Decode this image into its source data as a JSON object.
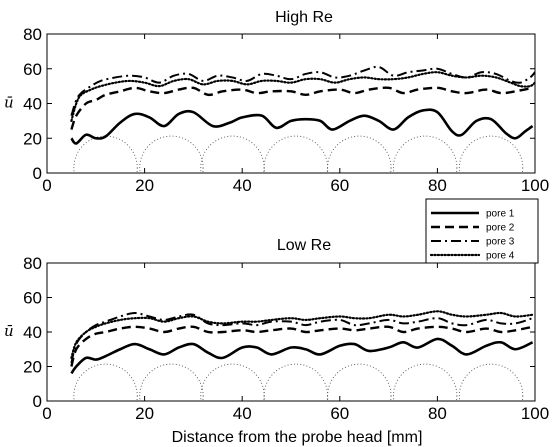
{
  "figure": {
    "xlabel": "Distance from the probe head [mm]"
  },
  "legend": {
    "entries": [
      {
        "label": "pore 1",
        "style": "solid"
      },
      {
        "label": "pore 2",
        "style": "dashed"
      },
      {
        "label": "pore 3",
        "style": "dashdot"
      },
      {
        "label": "pore 4",
        "style": "dotted"
      }
    ]
  },
  "colors": {
    "line": "#000000",
    "background": "#ffffff",
    "pore_outline": "#555555"
  },
  "chart_data": [
    {
      "type": "line",
      "title": "High Re",
      "xlabel": "",
      "ylabel": "ū",
      "xlim": [
        0,
        100
      ],
      "ylim": [
        0,
        80
      ],
      "xticks": [
        0,
        20,
        40,
        60,
        80,
        100
      ],
      "yticks": [
        0,
        20,
        40,
        60,
        80
      ],
      "grid": false,
      "pore_circles_x": [
        12,
        25.5,
        38,
        51,
        64,
        77.5,
        91
      ],
      "series": [
        {
          "name": "pore 1",
          "style": "solid",
          "x": [
            5,
            6,
            8,
            10,
            12,
            15,
            18,
            21,
            24,
            27,
            30,
            34,
            37.5,
            40,
            44,
            47,
            50,
            53,
            56,
            58.5,
            62,
            65,
            68,
            71,
            74,
            77,
            80,
            83,
            85,
            88,
            91,
            94,
            96,
            98,
            99.5
          ],
          "y": [
            20,
            17,
            22,
            20,
            21,
            29,
            34,
            32,
            27,
            34,
            35,
            27,
            29,
            32,
            33,
            26,
            30,
            31,
            30,
            25,
            30,
            33,
            30,
            25,
            32,
            36,
            35,
            24,
            22,
            30,
            31,
            23,
            20,
            24,
            27
          ]
        },
        {
          "name": "pore 2",
          "style": "dashed",
          "x": [
            5,
            6,
            8,
            10,
            12,
            15,
            18,
            21,
            24,
            27,
            30,
            33,
            36,
            40,
            43,
            46,
            50,
            53,
            56,
            60,
            63,
            66,
            70,
            73,
            76,
            80,
            83,
            86,
            90,
            93,
            96,
            99.5
          ],
          "y": [
            25,
            33,
            40,
            42,
            45,
            47,
            49,
            47,
            46,
            48,
            49,
            45,
            47,
            48,
            46,
            47,
            47,
            45,
            47,
            48,
            46,
            48,
            49,
            46,
            48,
            49,
            47,
            46,
            48,
            46,
            47,
            49
          ]
        },
        {
          "name": "pore 3",
          "style": "dashdot",
          "x": [
            5,
            6,
            7,
            9,
            11,
            14,
            17,
            20,
            23,
            26,
            29,
            32,
            35,
            38,
            41,
            44,
            47,
            50,
            53,
            56,
            59,
            62,
            65,
            68,
            71,
            74,
            77,
            80,
            83,
            86,
            89,
            92,
            95,
            97,
            99,
            100
          ],
          "y": [
            33,
            42,
            46,
            50,
            53,
            55,
            56,
            55,
            52,
            56,
            57,
            53,
            56,
            55,
            53,
            57,
            56,
            54,
            57,
            58,
            55,
            56,
            59,
            61,
            56,
            58,
            59,
            60,
            57,
            55,
            58,
            57,
            53,
            52,
            55,
            58
          ]
        },
        {
          "name": "pore 4",
          "style": "dotted",
          "x": [
            5,
            6,
            7,
            9,
            11,
            14,
            17,
            20,
            23,
            26,
            29,
            32,
            35,
            38,
            41,
            44,
            47,
            50,
            53,
            56,
            59,
            62,
            65,
            68,
            71,
            74,
            77,
            80,
            83,
            86,
            89,
            92,
            95,
            97,
            99,
            100
          ],
          "y": [
            30,
            40,
            45,
            48,
            50,
            52,
            53,
            52,
            50,
            53,
            54,
            51,
            53,
            53,
            51,
            53,
            53,
            52,
            54,
            54,
            52,
            54,
            55,
            54,
            54,
            55,
            57,
            58,
            56,
            55,
            56,
            55,
            52,
            50,
            50,
            52
          ]
        }
      ]
    },
    {
      "type": "line",
      "title": "Low Re",
      "xlabel": "Distance from the probe head [mm]",
      "ylabel": "ū",
      "xlim": [
        0,
        100
      ],
      "ylim": [
        0,
        80
      ],
      "xticks": [
        0,
        20,
        40,
        60,
        80,
        100
      ],
      "yticks": [
        0,
        20,
        40,
        60,
        80
      ],
      "grid": false,
      "pore_circles_x": [
        12,
        25.5,
        38,
        51,
        64,
        77.5,
        91
      ],
      "series": [
        {
          "name": "pore 1",
          "style": "solid",
          "x": [
            5,
            6,
            8,
            10,
            12,
            15,
            18,
            21,
            24,
            27,
            30,
            33,
            36,
            40,
            43,
            46,
            50,
            53,
            56,
            60,
            63,
            66,
            70,
            73,
            76,
            80,
            83,
            86,
            90,
            93,
            96,
            99.5
          ],
          "y": [
            16,
            20,
            25,
            24,
            26,
            30,
            33,
            30,
            27,
            31,
            33,
            28,
            25,
            31,
            31,
            27,
            31,
            30,
            27,
            32,
            33,
            29,
            31,
            34,
            31,
            36,
            32,
            27,
            32,
            34,
            30,
            34
          ]
        },
        {
          "name": "pore 2",
          "style": "dashed",
          "x": [
            5,
            6,
            8,
            10,
            12,
            15,
            18,
            21,
            24,
            27,
            30,
            33,
            36,
            40,
            43,
            46,
            50,
            53,
            56,
            60,
            63,
            66,
            70,
            73,
            76,
            80,
            83,
            86,
            90,
            93,
            96,
            99.5
          ],
          "y": [
            20,
            30,
            36,
            39,
            40,
            42,
            43,
            42,
            40,
            42,
            43,
            40,
            40,
            41,
            40,
            41,
            42,
            40,
            41,
            42,
            41,
            42,
            43,
            40,
            42,
            43,
            42,
            40,
            42,
            40,
            41,
            43
          ]
        },
        {
          "name": "pore 3",
          "style": "dashdot",
          "x": [
            5,
            6,
            8,
            10,
            12,
            15,
            18,
            21,
            24,
            27,
            30,
            33,
            36,
            40,
            43,
            46,
            50,
            53,
            56,
            60,
            63,
            66,
            70,
            73,
            76,
            80,
            83,
            86,
            90,
            93,
            96,
            99.5
          ],
          "y": [
            22,
            33,
            40,
            44,
            46,
            49,
            51,
            49,
            47,
            49,
            50,
            45,
            44,
            45,
            44,
            46,
            46,
            44,
            46,
            47,
            44,
            45,
            47,
            45,
            46,
            48,
            45,
            44,
            47,
            45,
            45,
            48
          ]
        },
        {
          "name": "pore 4",
          "style": "dotted",
          "x": [
            5,
            6,
            8,
            10,
            12,
            15,
            18,
            21,
            24,
            27,
            30,
            33,
            36,
            40,
            43,
            46,
            50,
            53,
            56,
            60,
            63,
            66,
            70,
            73,
            76,
            80,
            83,
            86,
            90,
            93,
            96,
            99.5
          ],
          "y": [
            25,
            34,
            40,
            43,
            45,
            47,
            48,
            48,
            46,
            48,
            49,
            46,
            45,
            46,
            46,
            47,
            48,
            47,
            48,
            49,
            48,
            48,
            50,
            49,
            50,
            52,
            50,
            49,
            50,
            51,
            49,
            50
          ]
        }
      ]
    }
  ]
}
